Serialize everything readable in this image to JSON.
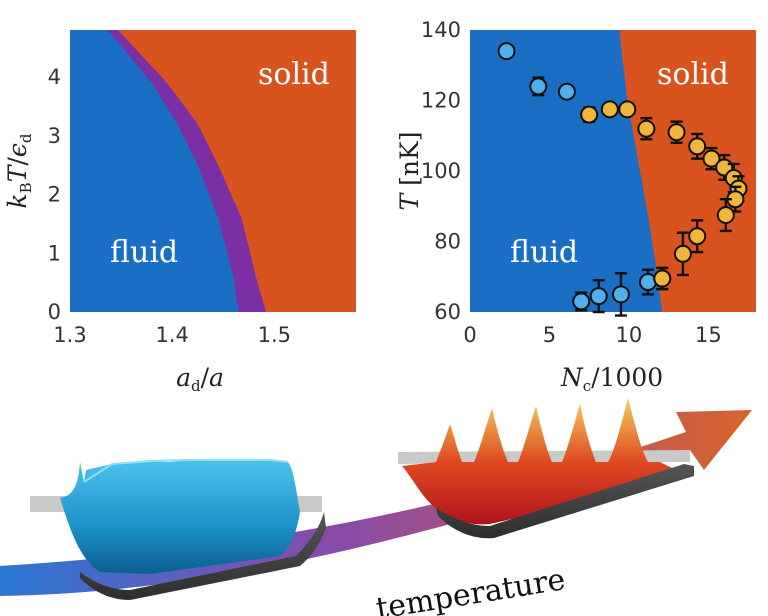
{
  "colors": {
    "fluid": "#1a6fc4",
    "solid": "#d9531e",
    "intermediate": "#7b2fa5",
    "point_fluid": "#4fb0ea",
    "point_solid": "#f0b63c",
    "arrow_start": "#2a76d2",
    "arrow_mid": "#8a4aa8",
    "arrow_end": "#d9632a"
  },
  "arrow_label": "temperature",
  "chart_data": [
    {
      "type": "area",
      "xlabel": "a_d/a",
      "ylabel": "k_B T/ε_d",
      "xlim": [
        1.3,
        1.58
      ],
      "ylim": [
        0,
        4.8
      ],
      "xticks": [
        "1.3",
        "1.4",
        "1.5"
      ],
      "yticks": [
        "0",
        "1",
        "2",
        "3",
        "4"
      ],
      "regions": [
        "fluid",
        "solid"
      ],
      "boundary_fluid": [
        [
          1.337,
          4.8
        ],
        [
          1.38,
          3.9
        ],
        [
          1.405,
          3.2
        ],
        [
          1.425,
          2.5
        ],
        [
          1.445,
          1.6
        ],
        [
          1.46,
          0.6
        ],
        [
          1.465,
          0
        ]
      ],
      "boundary_solid": [
        [
          1.347,
          4.8
        ],
        [
          1.395,
          3.9
        ],
        [
          1.425,
          3.2
        ],
        [
          1.445,
          2.5
        ],
        [
          1.468,
          1.6
        ],
        [
          1.482,
          0.6
        ],
        [
          1.492,
          0
        ]
      ]
    },
    {
      "type": "scatter",
      "xlabel": "N_c/1000",
      "ylabel": "T [nK]",
      "xlim": [
        0,
        18
      ],
      "ylim": [
        60,
        140
      ],
      "xticks": [
        "0",
        "5",
        "10",
        "15"
      ],
      "yticks": [
        "60",
        "80",
        "100",
        "120",
        "140"
      ],
      "regions": [
        "fluid",
        "solid"
      ],
      "boundary": [
        [
          9.4,
          140
        ],
        [
          9.9,
          120
        ],
        [
          10.7,
          100
        ],
        [
          11.3,
          85
        ],
        [
          11.8,
          70
        ],
        [
          12.1,
          60
        ]
      ],
      "fluid_points": [
        {
          "x": 2.3,
          "y": 134,
          "err": 1.5
        },
        {
          "x": 4.3,
          "y": 124,
          "err": 2.5
        },
        {
          "x": 6.1,
          "y": 122.5,
          "err": 1.0
        },
        {
          "x": 7.0,
          "y": 63,
          "err": 2.5
        },
        {
          "x": 8.1,
          "y": 64.5,
          "err": 4.5
        },
        {
          "x": 9.5,
          "y": 65,
          "err": 6.0
        },
        {
          "x": 11.2,
          "y": 68.5,
          "err": 3.5
        },
        {
          "x": 12.1,
          "y": 69.5,
          "err": 3.0
        }
      ],
      "solid_points": [
        {
          "x": 7.5,
          "y": 116,
          "err": 2.0
        },
        {
          "x": 8.8,
          "y": 117.5,
          "err": 1.0
        },
        {
          "x": 9.9,
          "y": 117.5,
          "err": 1.0
        },
        {
          "x": 11.1,
          "y": 112,
          "err": 3.0
        },
        {
          "x": 13.0,
          "y": 111,
          "err": 3.0
        },
        {
          "x": 14.3,
          "y": 107,
          "err": 3.5
        },
        {
          "x": 15.2,
          "y": 103.5,
          "err": 3.0
        },
        {
          "x": 16.0,
          "y": 101,
          "err": 3.5
        },
        {
          "x": 16.6,
          "y": 98,
          "err": 4.0
        },
        {
          "x": 16.9,
          "y": 95,
          "err": 3.5
        },
        {
          "x": 16.7,
          "y": 92,
          "err": 3.5
        },
        {
          "x": 16.1,
          "y": 87.5,
          "err": 4.5
        },
        {
          "x": 14.3,
          "y": 81.5,
          "err": 4.5
        },
        {
          "x": 13.4,
          "y": 76.5,
          "err": 6.0
        },
        {
          "x": 12.1,
          "y": 69.5,
          "err": 3.0
        }
      ]
    }
  ]
}
